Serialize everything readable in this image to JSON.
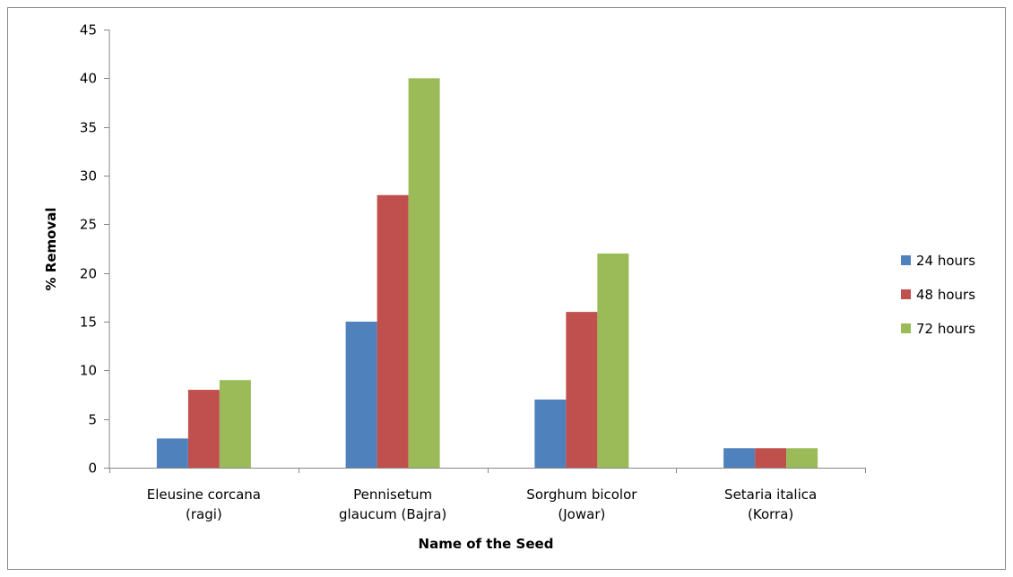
{
  "chart_data": {
    "type": "bar",
    "title": "",
    "xlabel": "Name of the Seed",
    "ylabel": "% Removal",
    "ylim": [
      0,
      45
    ],
    "ytick_step": 5,
    "grid": false,
    "legend_position": "right",
    "categories": [
      [
        "Eleusine corcana",
        "(ragi)"
      ],
      [
        "Pennisetum",
        "glaucum (Bajra)"
      ],
      [
        "Sorghum bicolor",
        "(Jowar)"
      ],
      [
        "Setaria italica",
        "(Korra)"
      ]
    ],
    "series": [
      {
        "name": "24 hours",
        "color": "#4f81bd",
        "values": [
          3,
          15,
          7,
          2
        ]
      },
      {
        "name": "48 hours",
        "color": "#c0504d",
        "values": [
          8,
          28,
          16,
          2
        ]
      },
      {
        "name": "72 hours",
        "color": "#9bbb59",
        "values": [
          9,
          40,
          22,
          2
        ]
      }
    ]
  }
}
